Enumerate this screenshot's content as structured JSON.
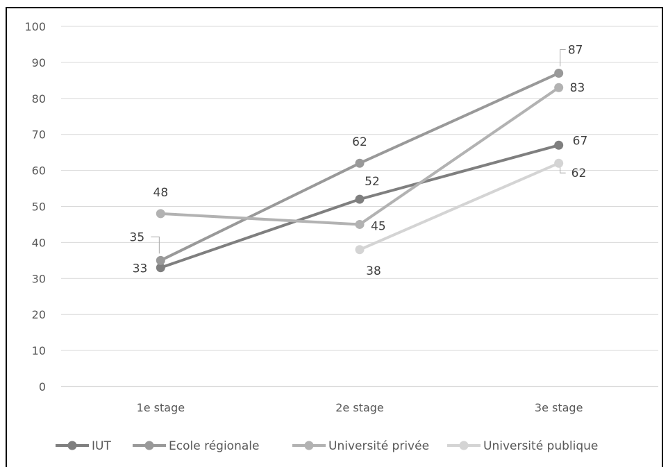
{
  "chart_data": {
    "type": "line",
    "categories": [
      "1e stage",
      "2e stage",
      "3e stage"
    ],
    "ylim": [
      0,
      100
    ],
    "yticks": [
      0,
      10,
      20,
      30,
      40,
      50,
      60,
      70,
      80,
      90,
      100
    ],
    "grid": true,
    "legend_position": "bottom",
    "series": [
      {
        "name": "IUT",
        "color": "#7f7f7f",
        "values": [
          33,
          52,
          67
        ],
        "labels": [
          "33",
          "52",
          "67"
        ]
      },
      {
        "name": "Ecole régionale",
        "color": "#999999",
        "values": [
          35,
          62,
          87
        ],
        "labels": [
          "35",
          "62",
          "87"
        ]
      },
      {
        "name": "Université privée",
        "color": "#b2b2b2",
        "values": [
          48,
          45,
          83
        ],
        "labels": [
          "48",
          "45",
          "83"
        ]
      },
      {
        "name": "Université publique",
        "color": "#d4d4d4",
        "values": [
          null,
          38,
          62
        ],
        "labels": [
          null,
          "38",
          "62"
        ]
      }
    ]
  }
}
